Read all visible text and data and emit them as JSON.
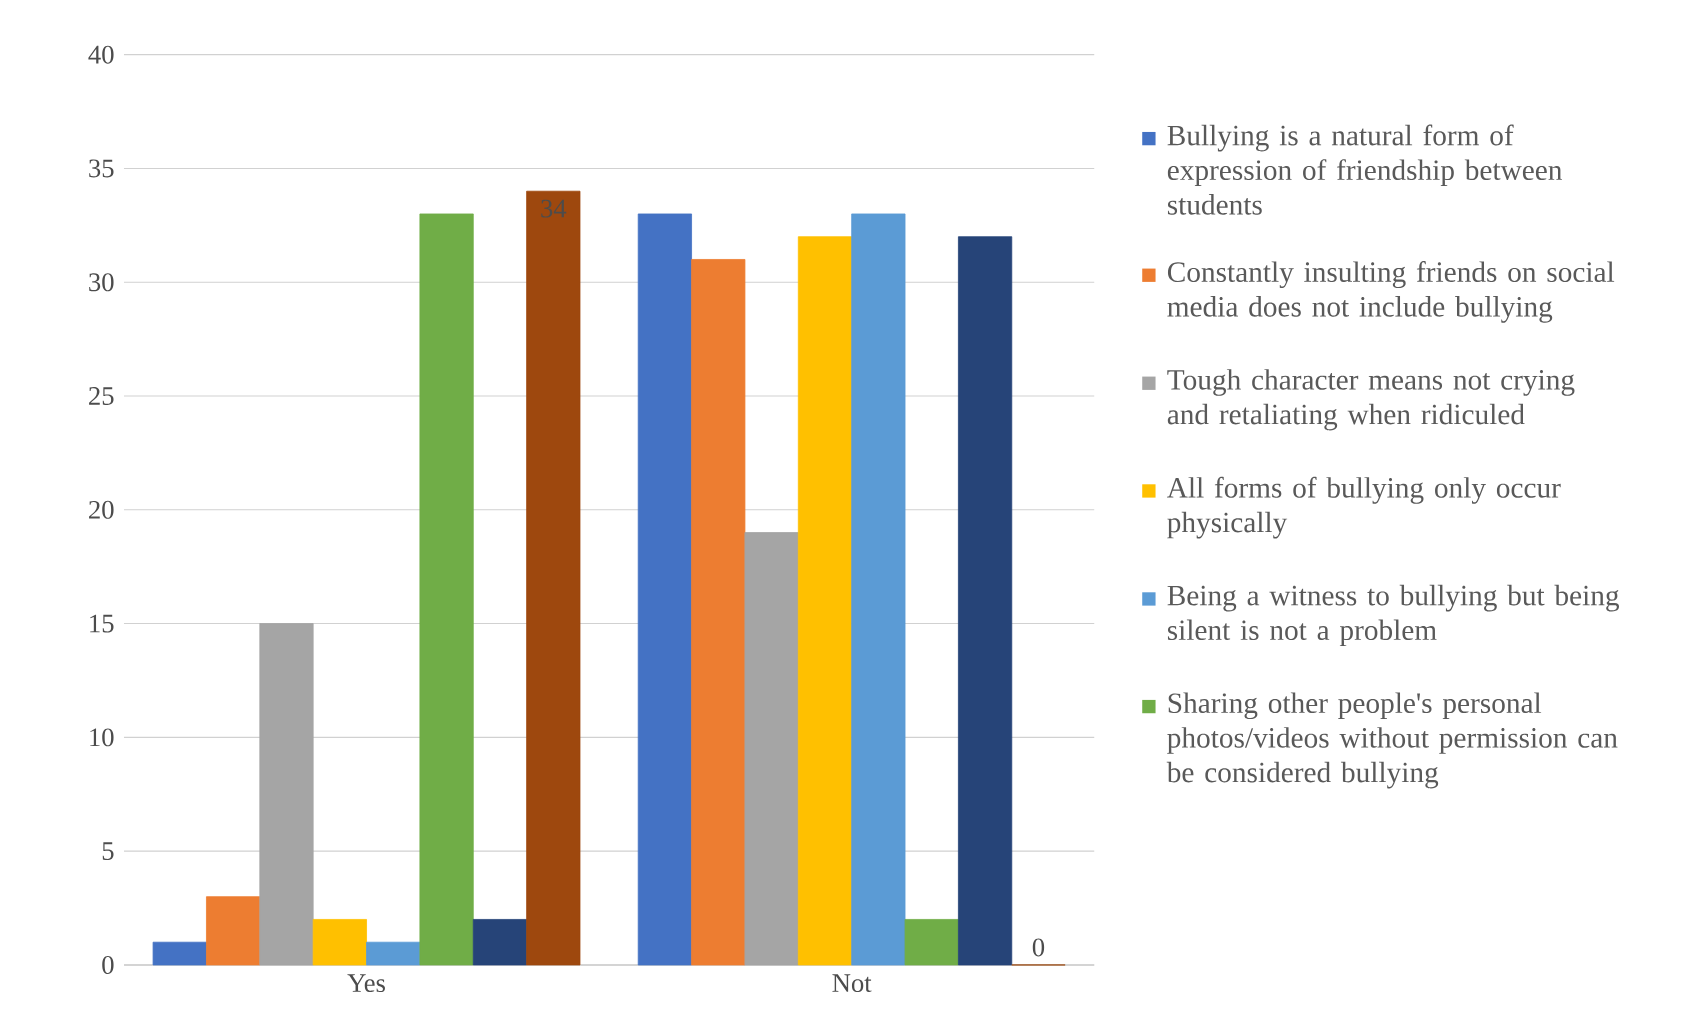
{
  "chart_data": {
    "type": "bar",
    "categories": [
      "Yes",
      "Not"
    ],
    "series": [
      {
        "name": "Bullying is a natural form of expression of friendship between students",
        "color": "#4472c4",
        "values": [
          1,
          33
        ]
      },
      {
        "name": "Constantly insulting friends on social media does not include bullying",
        "color": "#ed7d31",
        "values": [
          3,
          31
        ]
      },
      {
        "name": "Tough character means not crying and retaliating when ridiculed",
        "color": "#a5a5a5",
        "values": [
          15,
          19
        ]
      },
      {
        "name": "All forms of bullying only occur physically",
        "color": "#ffc000",
        "values": [
          2,
          32
        ]
      },
      {
        "name": "Being a witness to bullying but being silent is not a problem",
        "color": "#5b9bd5",
        "values": [
          1,
          33
        ]
      },
      {
        "name": "Sharing other people's personal photos/videos without permission can be considered bullying",
        "color": "#70ad47",
        "values": [
          33,
          2
        ]
      },
      {
        "color": "#264478",
        "values": [
          2,
          32
        ]
      },
      {
        "color": "#9e480e",
        "values": [
          34,
          0
        ],
        "value_labels": [
          "34",
          "0"
        ]
      }
    ],
    "ylim": [
      0,
      40
    ],
    "yticks": [
      0,
      5,
      10,
      15,
      20,
      25,
      30,
      35,
      40
    ],
    "grid": "y",
    "legend": "right"
  }
}
